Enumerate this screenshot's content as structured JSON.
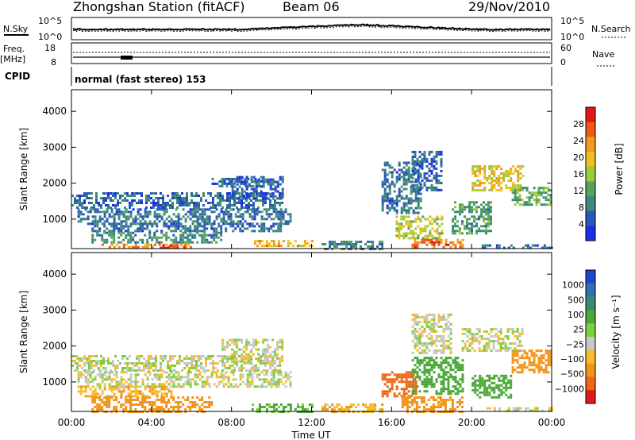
{
  "header": {
    "station": "Zhongshan Station (fitACF)",
    "beam": "Beam 06",
    "date": "29/Nov/2010"
  },
  "strip_panels": {
    "nsky_label": "N.Sky",
    "nsky_ticks": [
      "10^5",
      "10^0"
    ],
    "nsearch_label": "N.Search",
    "nsearch_ticks": [
      "10^5",
      "10^0"
    ],
    "freq_label": "Freq.",
    "freq_unit": "[MHz]",
    "freq_ticks": [
      "18",
      "8"
    ],
    "nave_label": "Nave",
    "nave_ticks": [
      "60",
      "0"
    ],
    "cpid_label": "CPID",
    "cpid_text": "normal (fast stereo) 153"
  },
  "colors": {
    "power_scale": [
      "#1a2fe6",
      "#2c57b8",
      "#3b8a7a",
      "#58a35c",
      "#9ccb3a",
      "#f0c020",
      "#f29a1a",
      "#ee5a14",
      "#e01818"
    ],
    "velocity_scale": [
      "#2244cc",
      "#2e70b0",
      "#3d8a70",
      "#4aa838",
      "#7cd03c",
      "#c8c8c8",
      "#f5bd28",
      "#f0941c",
      "#ec6816",
      "#e01818"
    ]
  },
  "chart_data": [
    {
      "type": "heatmap",
      "name": "power",
      "ylabel": "Slant Range [km]",
      "xlabel": "Time UT",
      "x_ticks": [
        "00:00",
        "04:00",
        "08:00",
        "12:00",
        "16:00",
        "20:00",
        "00:00"
      ],
      "xlim_hours": [
        0,
        24
      ],
      "y_ticks": [
        1000,
        2000,
        3000,
        4000
      ],
      "ylim_km": [
        180,
        4600
      ],
      "colorbar": {
        "label": "Power [dB]",
        "ticks": [
          "28",
          "24",
          "20",
          "16",
          "12",
          "8",
          "4"
        ],
        "range": [
          0,
          30
        ]
      },
      "regions": [
        {
          "t0": 0.0,
          "t1": 10.5,
          "r0": 1350,
          "r1": 1750,
          "v": 6
        },
        {
          "t0": 0.3,
          "t1": 11.0,
          "r0": 900,
          "r1": 1300,
          "v": 7
        },
        {
          "t0": 1.0,
          "t1": 10.5,
          "r0": 650,
          "r1": 900,
          "v": 6
        },
        {
          "t0": 1.5,
          "t1": 6.0,
          "r0": 200,
          "r1": 320,
          "v": 22
        },
        {
          "t0": 1.0,
          "t1": 7.5,
          "r0": 320,
          "r1": 650,
          "v": 9
        },
        {
          "t0": 4.3,
          "t1": 5.8,
          "r0": 200,
          "r1": 300,
          "v": 28
        },
        {
          "t0": 7.0,
          "t1": 9.5,
          "r0": 1900,
          "r1": 2150,
          "v": 6
        },
        {
          "t0": 9.0,
          "t1": 12.0,
          "r0": 250,
          "r1": 420,
          "v": 20
        },
        {
          "t0": 8.0,
          "t1": 10.5,
          "r0": 1600,
          "r1": 2200,
          "v": 5
        },
        {
          "t0": 12.5,
          "t1": 15.5,
          "r0": 200,
          "r1": 400,
          "v": 8
        },
        {
          "t0": 15.5,
          "t1": 17.5,
          "r0": 1200,
          "r1": 2600,
          "v": 7
        },
        {
          "t0": 16.2,
          "t1": 18.5,
          "r0": 500,
          "r1": 1100,
          "v": 16
        },
        {
          "t0": 17.0,
          "t1": 19.5,
          "r0": 200,
          "r1": 450,
          "v": 24
        },
        {
          "t0": 17.0,
          "t1": 18.5,
          "r0": 1800,
          "r1": 2900,
          "v": 6
        },
        {
          "t0": 19.0,
          "t1": 21.0,
          "r0": 600,
          "r1": 1500,
          "v": 10
        },
        {
          "t0": 20.0,
          "t1": 22.5,
          "r0": 1800,
          "r1": 2500,
          "v": 18
        },
        {
          "t0": 22.0,
          "t1": 24.0,
          "r0": 1400,
          "r1": 1900,
          "v": 12
        },
        {
          "t0": 20.5,
          "t1": 24.0,
          "r0": 200,
          "r1": 300,
          "v": 5
        }
      ]
    },
    {
      "type": "heatmap",
      "name": "velocity",
      "ylabel": "Slant Range [km]",
      "xlabel": "Time UT",
      "x_ticks": [
        "00:00",
        "04:00",
        "08:00",
        "12:00",
        "16:00",
        "20:00",
        "00:00"
      ],
      "xlim_hours": [
        0,
        24
      ],
      "y_ticks": [
        1000,
        2000,
        3000,
        4000
      ],
      "ylim_km": [
        180,
        4600
      ],
      "colorbar": {
        "label": "Velocity [m s⁻¹]",
        "ticks": [
          "1000",
          "500",
          "100",
          "25",
          "−25",
          "−100",
          "−500",
          "−1000"
        ],
        "range": [
          -1200,
          1200
        ]
      },
      "regions": [
        {
          "t0": 0.0,
          "t1": 10.5,
          "r0": 1350,
          "r1": 1750,
          "v": 10
        },
        {
          "t0": 0.3,
          "t1": 11.0,
          "r0": 900,
          "r1": 1300,
          "v": 0
        },
        {
          "t0": 0.3,
          "t1": 5.0,
          "r0": 600,
          "r1": 900,
          "v": -80
        },
        {
          "t0": 1.0,
          "t1": 7.0,
          "r0": 200,
          "r1": 600,
          "v": -300
        },
        {
          "t0": 7.5,
          "t1": 10.5,
          "r0": 1600,
          "r1": 2200,
          "v": 0
        },
        {
          "t0": 9.0,
          "t1": 12.0,
          "r0": 200,
          "r1": 400,
          "v": 120
        },
        {
          "t0": 12.5,
          "t1": 15.5,
          "r0": 200,
          "r1": 400,
          "v": -80
        },
        {
          "t0": 15.5,
          "t1": 17.2,
          "r0": 600,
          "r1": 1300,
          "v": -700
        },
        {
          "t0": 16.5,
          "t1": 19.5,
          "r0": 200,
          "r1": 600,
          "v": -150
        },
        {
          "t0": 17.0,
          "t1": 19.5,
          "r0": 700,
          "r1": 1700,
          "v": 300
        },
        {
          "t0": 17.0,
          "t1": 19.0,
          "r0": 1800,
          "r1": 2900,
          "v": 0
        },
        {
          "t0": 19.5,
          "t1": 22.5,
          "r0": 1900,
          "r1": 2500,
          "v": 0
        },
        {
          "t0": 20.0,
          "t1": 22.0,
          "r0": 600,
          "r1": 1200,
          "v": 200
        },
        {
          "t0": 22.0,
          "t1": 24.0,
          "r0": 1300,
          "r1": 1900,
          "v": -200
        },
        {
          "t0": 20.5,
          "t1": 24.0,
          "r0": 200,
          "r1": 300,
          "v": 0
        }
      ]
    }
  ]
}
